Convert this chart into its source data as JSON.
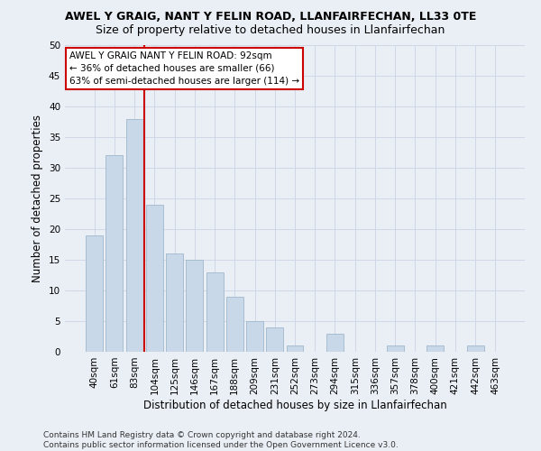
{
  "title": "AWEL Y GRAIG, NANT Y FELIN ROAD, LLANFAIRFECHAN, LL33 0TE",
  "subtitle": "Size of property relative to detached houses in Llanfairfechan",
  "xlabel": "Distribution of detached houses by size in Llanfairfechan",
  "ylabel": "Number of detached properties",
  "bar_labels": [
    "40sqm",
    "61sqm",
    "83sqm",
    "104sqm",
    "125sqm",
    "146sqm",
    "167sqm",
    "188sqm",
    "209sqm",
    "231sqm",
    "252sqm",
    "273sqm",
    "294sqm",
    "315sqm",
    "336sqm",
    "357sqm",
    "378sqm",
    "400sqm",
    "421sqm",
    "442sqm",
    "463sqm"
  ],
  "bar_values": [
    19,
    32,
    38,
    24,
    16,
    15,
    13,
    9,
    5,
    4,
    1,
    0,
    3,
    0,
    0,
    1,
    0,
    1,
    0,
    1,
    0
  ],
  "bar_color": "#c8d8e8",
  "bar_edgecolor": "#a0b8cc",
  "vline_x_index": 2,
  "vline_color": "#cc0000",
  "ylim": [
    0,
    50
  ],
  "yticks": [
    0,
    5,
    10,
    15,
    20,
    25,
    30,
    35,
    40,
    45,
    50
  ],
  "annotation_text": "AWEL Y GRAIG NANT Y FELIN ROAD: 92sqm\n← 36% of detached houses are smaller (66)\n63% of semi-detached houses are larger (114) →",
  "annotation_box_color": "#ffffff",
  "annotation_box_edgecolor": "#cc0000",
  "footer_text": "Contains HM Land Registry data © Crown copyright and database right 2024.\nContains public sector information licensed under the Open Government Licence v3.0.",
  "title_fontsize": 9,
  "subtitle_fontsize": 9,
  "xlabel_fontsize": 8.5,
  "ylabel_fontsize": 8.5,
  "tick_fontsize": 7.5,
  "annotation_fontsize": 7.5,
  "footer_fontsize": 6.5,
  "grid_color": "#d0d8e8",
  "bg_color": "#eaeff6"
}
